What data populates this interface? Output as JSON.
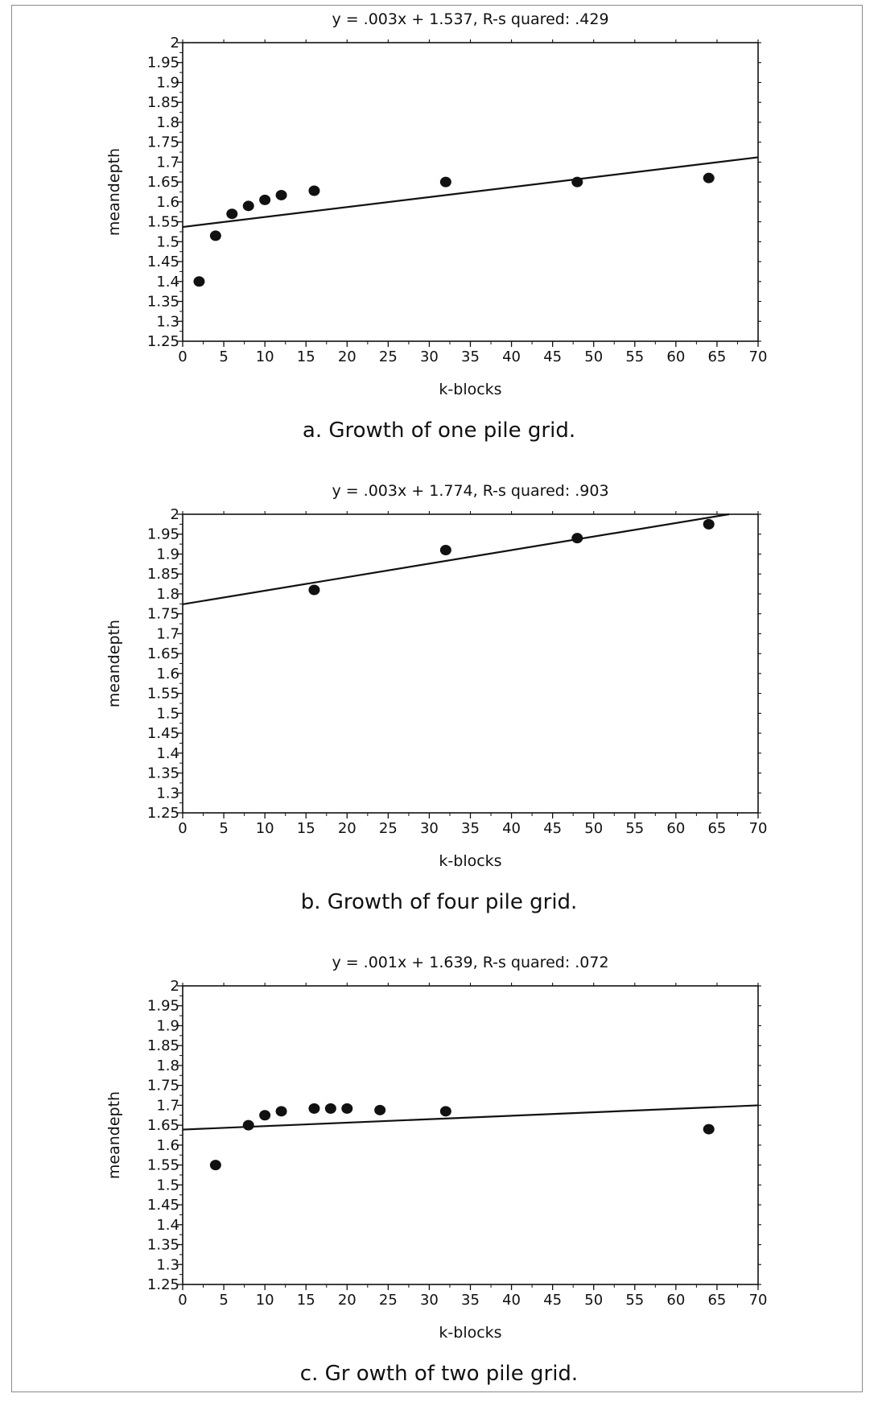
{
  "chart_data": [
    {
      "type": "scatter",
      "title": "y = .003x + 1.537, R-s quared: .429",
      "xlabel": "k-blocks",
      "ylabel": "meandepth",
      "caption": "a. Growth of one pile grid.",
      "xlim": [
        0,
        70
      ],
      "ylim": [
        1.25,
        2
      ],
      "xticks": [
        "0",
        "5",
        "10",
        "15",
        "20",
        "25",
        "30",
        "35",
        "40",
        "45",
        "50",
        "55",
        "60",
        "65",
        "70"
      ],
      "yticks": [
        "1.25",
        "1.3",
        "1.35",
        "1.4",
        "1.45",
        "1.5",
        "1.55",
        "1.6",
        "1.65",
        "1.7",
        "1.75",
        "1.8",
        "1.85",
        "1.9",
        "1.95",
        "2"
      ],
      "grid": false,
      "points": [
        {
          "x": 2,
          "y": 1.4
        },
        {
          "x": 4,
          "y": 1.515
        },
        {
          "x": 6,
          "y": 1.57
        },
        {
          "x": 8,
          "y": 1.59
        },
        {
          "x": 10,
          "y": 1.605
        },
        {
          "x": 12,
          "y": 1.617
        },
        {
          "x": 16,
          "y": 1.628
        },
        {
          "x": 32,
          "y": 1.65
        },
        {
          "x": 48,
          "y": 1.65
        },
        {
          "x": 64,
          "y": 1.66
        }
      ],
      "fit": {
        "slope": 0.0025,
        "intercept": 1.537
      }
    },
    {
      "type": "scatter",
      "title": "y = .003x + 1.774, R-s quared: .903",
      "xlabel": "k-blocks",
      "ylabel": "meandepth",
      "caption": "b. Growth of four pile grid.",
      "xlim": [
        0,
        70
      ],
      "ylim": [
        1.25,
        2
      ],
      "xticks": [
        "0",
        "5",
        "10",
        "15",
        "20",
        "25",
        "30",
        "35",
        "40",
        "45",
        "50",
        "55",
        "60",
        "65",
        "70"
      ],
      "yticks": [
        "1.25",
        "1.3",
        "1.35",
        "1.4",
        "1.45",
        "1.5",
        "1.55",
        "1.6",
        "1.65",
        "1.7",
        "1.75",
        "1.8",
        "1.85",
        "1.9",
        "1.95",
        "2"
      ],
      "grid": false,
      "points": [
        {
          "x": 16,
          "y": 1.81
        },
        {
          "x": 32,
          "y": 1.91
        },
        {
          "x": 48,
          "y": 1.94
        },
        {
          "x": 64,
          "y": 1.975
        }
      ],
      "fit": {
        "slope": 0.0034,
        "intercept": 1.774
      }
    },
    {
      "type": "scatter",
      "title": "y = .001x + 1.639, R-s quared: .072",
      "xlabel": "k-blocks",
      "ylabel": "meandepth",
      "caption": "c. Gr owth of two pile grid.",
      "xlim": [
        0,
        70
      ],
      "ylim": [
        1.25,
        2
      ],
      "xticks": [
        "0",
        "5",
        "10",
        "15",
        "20",
        "25",
        "30",
        "35",
        "40",
        "45",
        "50",
        "55",
        "60",
        "65",
        "70"
      ],
      "yticks": [
        "1.25",
        "1.3",
        "1.35",
        "1.4",
        "1.45",
        "1.5",
        "1.55",
        "1.6",
        "1.65",
        "1.7",
        "1.75",
        "1.8",
        "1.85",
        "1.9",
        "1.95",
        "2"
      ],
      "grid": false,
      "points": [
        {
          "x": 4,
          "y": 1.55
        },
        {
          "x": 8,
          "y": 1.65
        },
        {
          "x": 10,
          "y": 1.675
        },
        {
          "x": 12,
          "y": 1.685
        },
        {
          "x": 16,
          "y": 1.692
        },
        {
          "x": 18,
          "y": 1.692
        },
        {
          "x": 20,
          "y": 1.692
        },
        {
          "x": 24,
          "y": 1.688
        },
        {
          "x": 32,
          "y": 1.685
        },
        {
          "x": 64,
          "y": 1.64
        }
      ],
      "fit": {
        "slope": 0.00087,
        "intercept": 1.639
      }
    }
  ]
}
